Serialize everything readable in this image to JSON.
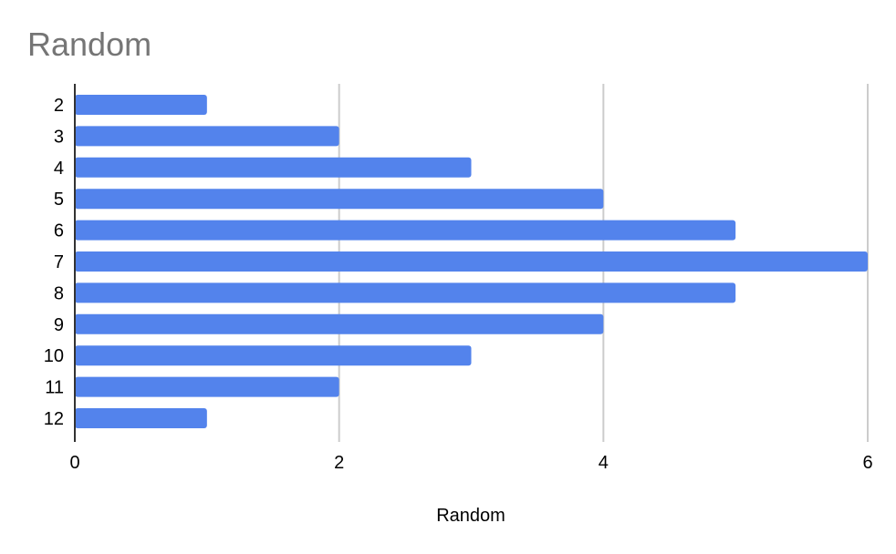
{
  "chart_data": {
    "type": "bar",
    "orientation": "horizontal",
    "title": "Random",
    "xlabel": "Random",
    "ylabel": "",
    "categories": [
      "2",
      "3",
      "4",
      "5",
      "6",
      "7",
      "8",
      "9",
      "10",
      "11",
      "12"
    ],
    "series": [
      {
        "values": [
          1,
          2,
          3,
          4,
          5,
          6,
          5,
          4,
          3,
          2,
          1
        ],
        "color": "#5383EC"
      }
    ],
    "xlim": [
      0,
      6
    ],
    "x_ticks": [
      0,
      2,
      4,
      6
    ],
    "grid": true,
    "legend": "none",
    "colors": {
      "bar": "#5383EC",
      "grid": "#cccccc",
      "axis": "#333333",
      "title": "#757575"
    }
  }
}
